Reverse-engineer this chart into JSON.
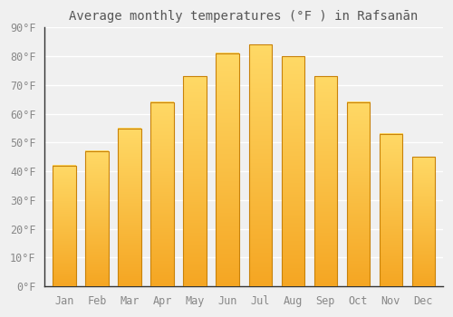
{
  "title": "Average monthly temperatures (°F ) in Rafsanān",
  "months": [
    "Jan",
    "Feb",
    "Mar",
    "Apr",
    "May",
    "Jun",
    "Jul",
    "Aug",
    "Sep",
    "Oct",
    "Nov",
    "Dec"
  ],
  "values": [
    42,
    47,
    55,
    64,
    73,
    81,
    84,
    80,
    73,
    64,
    53,
    45
  ],
  "bar_color_bottom": "#F5A623",
  "bar_color_top": "#FFD966",
  "bar_edge_color": "#C8820A",
  "ylim": [
    0,
    90
  ],
  "yticks": [
    0,
    10,
    20,
    30,
    40,
    50,
    60,
    70,
    80,
    90
  ],
  "background_color": "#f0f0f0",
  "grid_color": "#ffffff",
  "title_fontsize": 10,
  "tick_fontsize": 8.5,
  "bar_width": 0.7,
  "title_color": "#555555",
  "tick_color": "#888888"
}
